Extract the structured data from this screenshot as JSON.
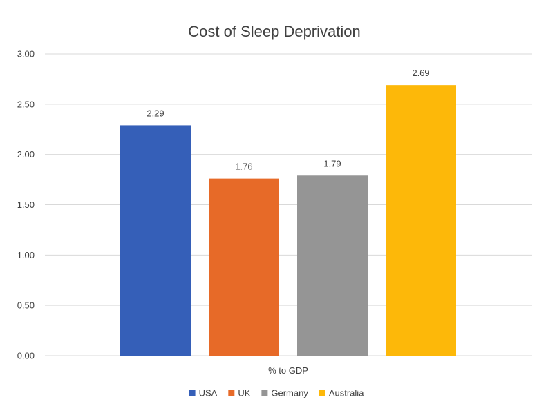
{
  "chart_data": {
    "type": "bar",
    "title": "Cost of Sleep Deprivation",
    "categories": [
      "% to GDP"
    ],
    "xlabel": "",
    "ylabel": "",
    "ylim": [
      0,
      3
    ],
    "yticks": [
      "0.00",
      "0.50",
      "1.00",
      "1.50",
      "2.00",
      "2.50",
      "3.00"
    ],
    "grid": true,
    "legend_position": "bottom",
    "series": [
      {
        "name": "USA",
        "values": [
          2.29
        ],
        "label": "2.29",
        "color": "#355fb8"
      },
      {
        "name": "UK",
        "values": [
          1.76
        ],
        "label": "1.76",
        "color": "#e76a28"
      },
      {
        "name": "Germany",
        "values": [
          1.79
        ],
        "label": "1.79",
        "color": "#959595"
      },
      {
        "name": "Australia",
        "values": [
          2.69
        ],
        "label": "2.69",
        "color": "#fdb809"
      }
    ]
  }
}
